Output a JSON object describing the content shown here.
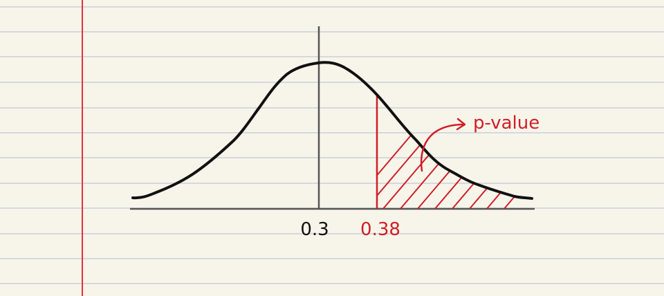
{
  "colors": {
    "paper": "#f7f5ea",
    "rule_line": "#d5d9dc",
    "margin_line": "#e0323a",
    "curve": "#111111",
    "axis": "#555555",
    "highlight": "#d01e28"
  },
  "diagram": {
    "mean_label": "0.3",
    "observed_label": "0.38",
    "callout_label": "p-value"
  }
}
